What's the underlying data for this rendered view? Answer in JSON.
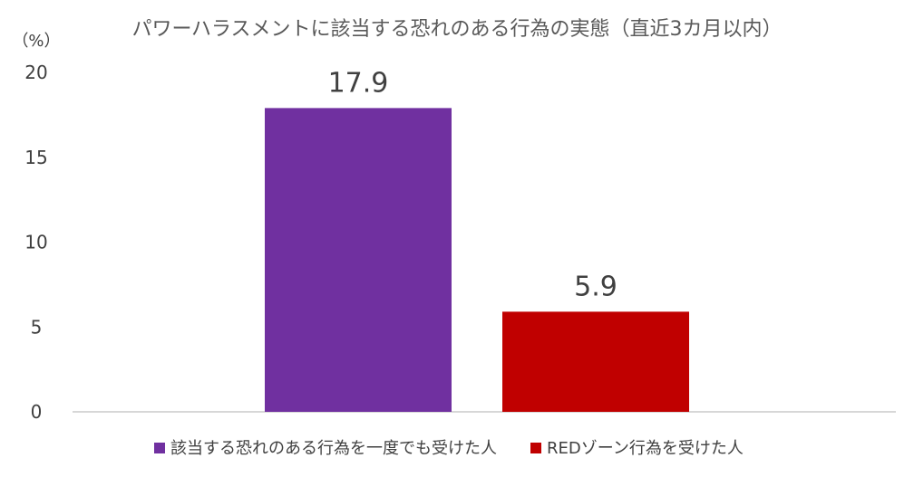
{
  "chart_data": {
    "type": "bar",
    "title": "パワーハラスメントに該当する恐れのある行為の実態（直近3カ月以内）",
    "ylabel": "（%）",
    "ylim": [
      0,
      20
    ],
    "yticks": [
      0,
      5,
      10,
      15,
      20
    ],
    "grid": false,
    "legend_position": "bottom",
    "series": [
      {
        "name": "該当する恐れのある行為を一度でも受けた人",
        "value": 17.9,
        "label": "17.9",
        "color": "#7030A0"
      },
      {
        "name": "REDゾーン行為を受けた人",
        "value": 5.9,
        "label": "5.9",
        "color": "#C00000"
      }
    ]
  }
}
